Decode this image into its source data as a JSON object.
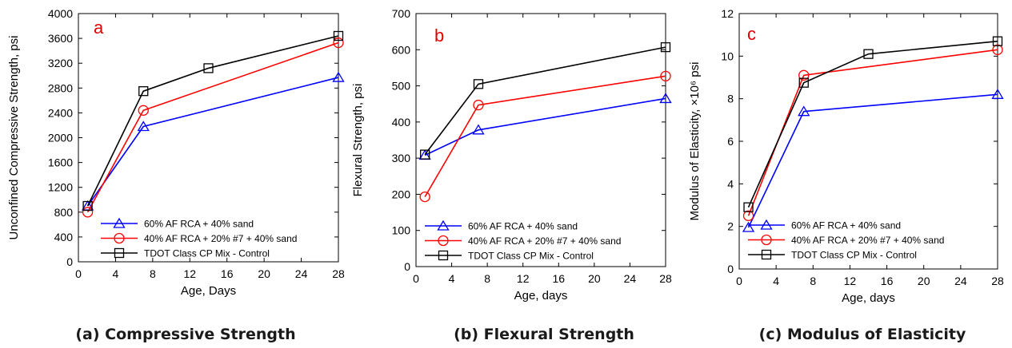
{
  "chart_data": [
    {
      "type": "line",
      "panel_letter": "a",
      "caption": "(a) Compressive Strength",
      "xlabel": "Age, Days",
      "ylabel": "Unconfined Compressive Strength, psi",
      "xlim": [
        0,
        28
      ],
      "ylim": [
        0,
        4000
      ],
      "xticks": [
        0,
        4,
        8,
        12,
        16,
        20,
        24,
        28
      ],
      "yticks": [
        0,
        400,
        800,
        1200,
        1600,
        2000,
        2400,
        2800,
        3200,
        3600,
        4000
      ],
      "legend_position": "bottom-left",
      "series": [
        {
          "name": "60% AF RCA + 40% sand",
          "color": "#0000ff",
          "marker": "triangle",
          "x": [
            1,
            7,
            28
          ],
          "y": [
            900,
            2180,
            2970
          ]
        },
        {
          "name": "40% AF RCA + 20% #7 + 40% sand",
          "color": "#ff0000",
          "marker": "circle",
          "x": [
            1,
            7,
            28
          ],
          "y": [
            800,
            2440,
            3530
          ]
        },
        {
          "name": "TDOT Class CP Mix - Control",
          "color": "#000000",
          "marker": "square",
          "x": [
            1,
            7,
            14,
            28
          ],
          "y": [
            900,
            2750,
            3120,
            3640
          ]
        }
      ]
    },
    {
      "type": "line",
      "panel_letter": "b",
      "caption": "(b) Flexural Strength",
      "xlabel": "Age, days",
      "ylabel": "Flexural Strength, psi",
      "xlim": [
        0,
        28
      ],
      "ylim": [
        0,
        700
      ],
      "xticks": [
        0,
        4,
        8,
        12,
        16,
        20,
        24,
        28
      ],
      "yticks": [
        0,
        100,
        200,
        300,
        400,
        500,
        600,
        700
      ],
      "legend_position": "bottom-left",
      "series": [
        {
          "name": "60% AF RCA + 40% sand",
          "color": "#0000ff",
          "marker": "triangle",
          "x": [
            1,
            7,
            28
          ],
          "y": [
            308,
            378,
            465
          ]
        },
        {
          "name": "40% AF RCA + 20% #7 + 40% sand",
          "color": "#ff0000",
          "marker": "circle",
          "x": [
            1,
            7,
            28
          ],
          "y": [
            193,
            447,
            527
          ]
        },
        {
          "name": "TDOT Class CP Mix - Control",
          "color": "#000000",
          "marker": "square",
          "x": [
            1,
            7,
            28
          ],
          "y": [
            310,
            505,
            607
          ]
        }
      ]
    },
    {
      "type": "line",
      "panel_letter": "c",
      "caption": "(c) Modulus of Elasticity",
      "xlabel": "Age, days",
      "ylabel": "Modulus of Elasticity, ×10⁶ psi",
      "xlim": [
        0,
        28
      ],
      "ylim": [
        0,
        12
      ],
      "xticks": [
        0,
        4,
        8,
        12,
        16,
        20,
        24,
        28
      ],
      "yticks": [
        0,
        2,
        4,
        6,
        8,
        10,
        12
      ],
      "legend_position": "bottom-left",
      "series": [
        {
          "name": "60% AF RCA + 40% sand",
          "color": "#0000ff",
          "marker": "triangle",
          "x": [
            1,
            7,
            28
          ],
          "y": [
            1.95,
            7.4,
            8.2
          ]
        },
        {
          "name": "40% AF RCA + 20% #7 + 40% sand",
          "color": "#ff0000",
          "marker": "circle",
          "x": [
            1,
            7,
            28
          ],
          "y": [
            2.5,
            9.1,
            10.3
          ]
        },
        {
          "name": "TDOT Class CP Mix - Control",
          "color": "#000000",
          "marker": "square",
          "x": [
            1,
            7,
            14,
            28
          ],
          "y": [
            2.9,
            8.75,
            10.1,
            10.7
          ]
        }
      ]
    }
  ]
}
